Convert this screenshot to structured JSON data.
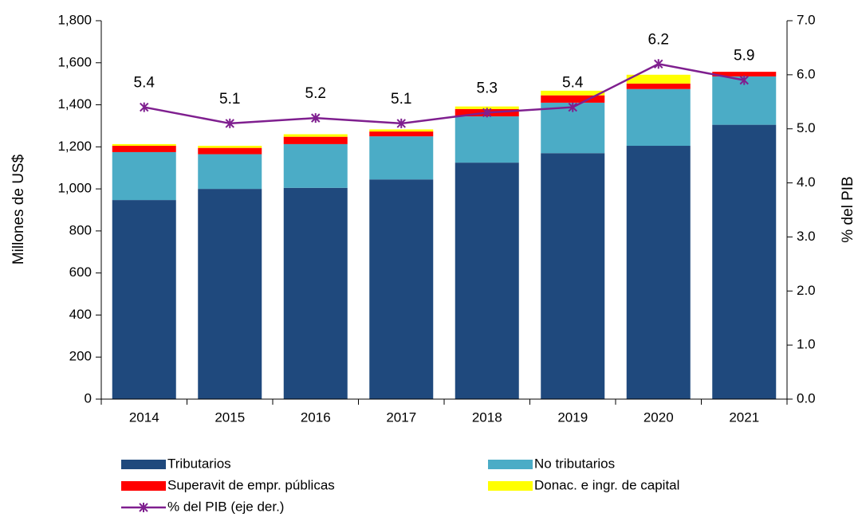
{
  "chart_data": {
    "type": "bar",
    "categories": [
      "2014",
      "2015",
      "2016",
      "2017",
      "2018",
      "2019",
      "2020",
      "2021"
    ],
    "ylabel": "Millones de US$",
    "y2label": "% del PIB",
    "ylim": [
      0,
      1800
    ],
    "yticks": [
      0,
      200,
      400,
      600,
      800,
      {
        "value": 1000,
        "label": "1,000"
      },
      {
        "value": 1200,
        "label": "1,200"
      },
      {
        "value": 1400,
        "label": "1,400"
      },
      {
        "value": 1600,
        "label": "1,600"
      },
      {
        "value": 1800,
        "label": "1,800"
      }
    ],
    "y2lim": [
      0,
      7
    ],
    "y2ticks": [
      {
        "value": 0,
        "label": "0.0"
      },
      {
        "value": 1,
        "label": "1.0"
      },
      {
        "value": 2,
        "label": "2.0"
      },
      {
        "value": 3,
        "label": "3.0"
      },
      {
        "value": 4,
        "label": "4.0"
      },
      {
        "value": 5,
        "label": "5.0"
      },
      {
        "value": 6,
        "label": "6.0"
      },
      {
        "value": 7,
        "label": "7.0"
      }
    ],
    "stacked": true,
    "series": [
      {
        "name": "Tributarios",
        "color": "#1f497d",
        "values": [
          947,
          1000,
          1005,
          1045,
          1125,
          1170,
          1205,
          1305
        ]
      },
      {
        "name": "No tributarios",
        "color": "#4bacc6",
        "values": [
          228,
          165,
          208,
          205,
          220,
          240,
          270,
          230
        ]
      },
      {
        "name": "Superavit de empr. públicas",
        "color": "#ff0000",
        "values": [
          30,
          30,
          35,
          23,
          35,
          35,
          26,
          22
        ]
      },
      {
        "name": "Donac. e ingr. de capital",
        "color": "#ffff00",
        "values": [
          8,
          10,
          12,
          10,
          12,
          22,
          42,
          0
        ]
      },
      {
        "name": "% del PIB (eje der.)",
        "color": "#7f1f8f",
        "type": "line",
        "axis": "y2",
        "values": [
          5.4,
          5.1,
          5.2,
          5.1,
          5.3,
          5.4,
          6.2,
          5.9
        ]
      }
    ]
  }
}
